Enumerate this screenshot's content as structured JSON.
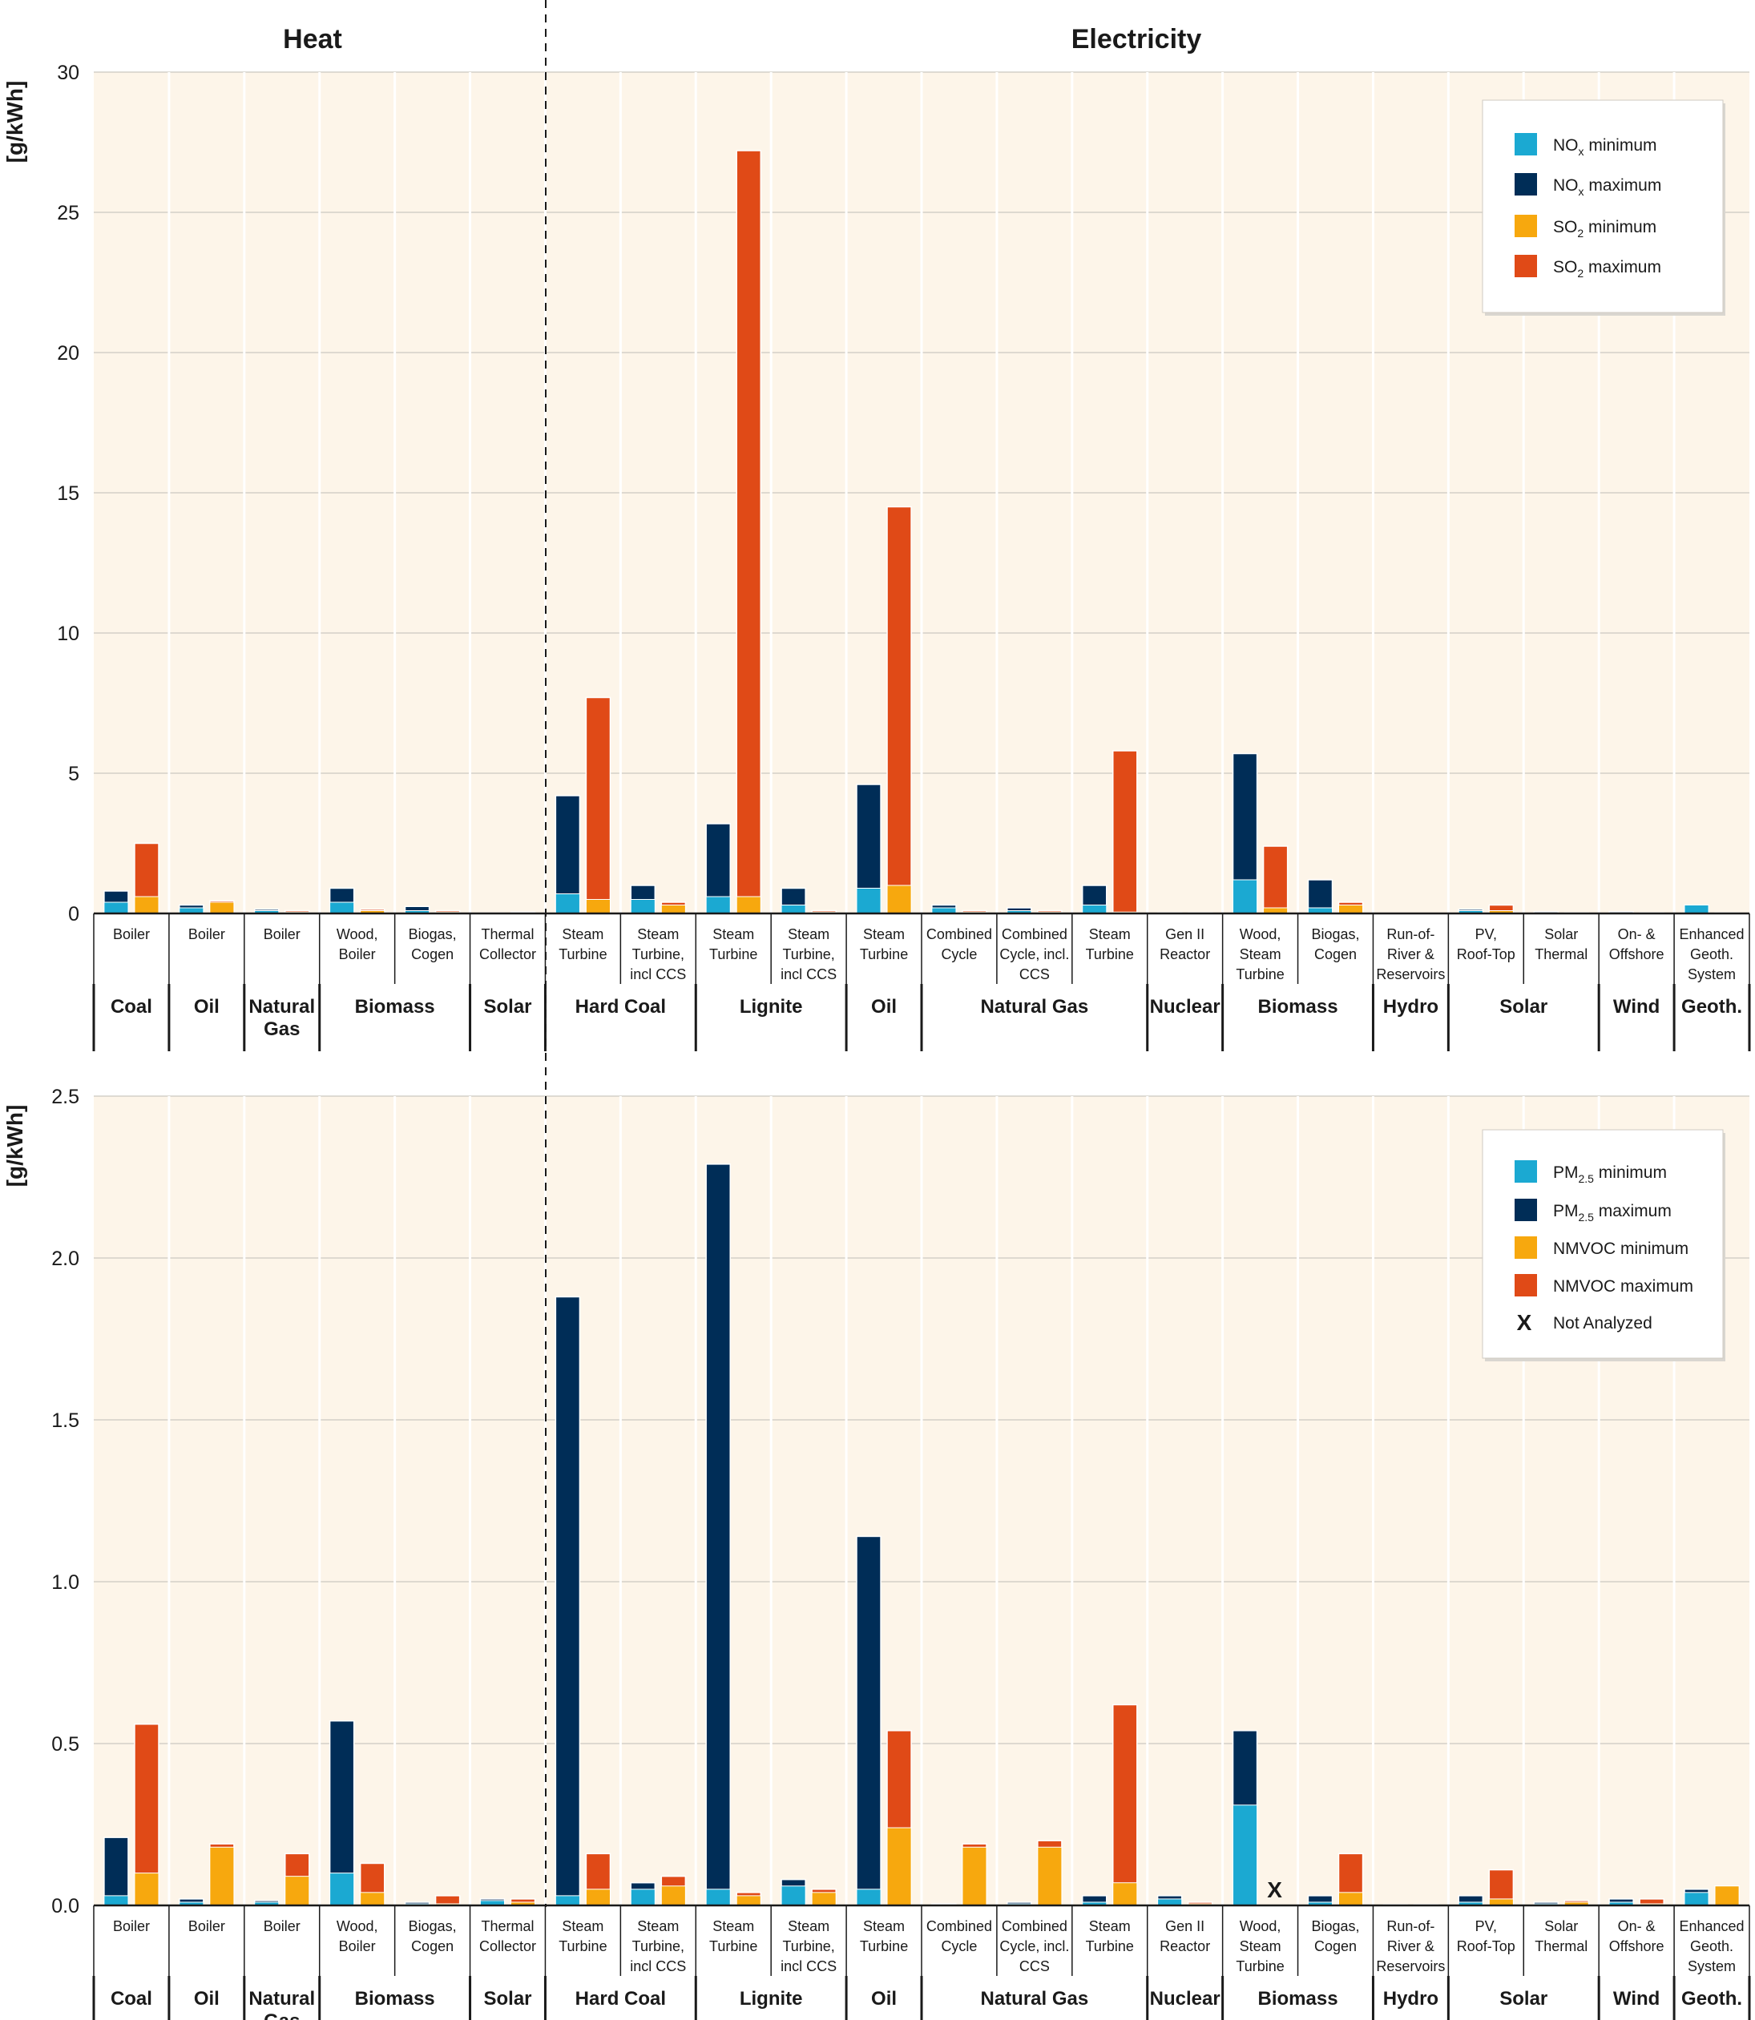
{
  "headers": {
    "heat": "Heat",
    "electricity": "Electricity"
  },
  "categories": [
    {
      "sub": [
        "Boiler"
      ],
      "group": "Coal"
    },
    {
      "sub": [
        "Boiler"
      ],
      "group": "Oil"
    },
    {
      "sub": [
        "Boiler"
      ],
      "group": "Natural Gas"
    },
    {
      "sub": [
        "Wood,",
        "Boiler"
      ],
      "group": "Biomass"
    },
    {
      "sub": [
        "Biogas,",
        "Cogen"
      ],
      "group": "Biomass"
    },
    {
      "sub": [
        "Thermal",
        "Collector"
      ],
      "group": "Solar"
    },
    {
      "sub": [
        "Steam",
        "Turbine"
      ],
      "group": "Hard Coal"
    },
    {
      "sub": [
        "Steam",
        "Turbine,",
        "incl CCS"
      ],
      "group": "Hard Coal"
    },
    {
      "sub": [
        "Steam",
        "Turbine"
      ],
      "group": "Lignite"
    },
    {
      "sub": [
        "Steam",
        "Turbine,",
        "incl CCS"
      ],
      "group": "Lignite"
    },
    {
      "sub": [
        "Steam",
        "Turbine"
      ],
      "group": "Oil"
    },
    {
      "sub": [
        "Combined",
        "Cycle"
      ],
      "group": "Natural Gas"
    },
    {
      "sub": [
        "Combined",
        "Cycle, incl.",
        "CCS"
      ],
      "group": "Natural Gas"
    },
    {
      "sub": [
        "Steam",
        "Turbine"
      ],
      "group": "Natural Gas"
    },
    {
      "sub": [
        "Gen II",
        "Reactor"
      ],
      "group": "Nuclear"
    },
    {
      "sub": [
        "Wood,",
        "Steam",
        "Turbine"
      ],
      "group": "Biomass"
    },
    {
      "sub": [
        "Biogas,",
        "Cogen"
      ],
      "group": "Biomass"
    },
    {
      "sub": [
        "Run-of-",
        "River &",
        "Reservoirs"
      ],
      "group": "Hydro"
    },
    {
      "sub": [
        "PV,",
        "Roof-Top"
      ],
      "group": "Solar"
    },
    {
      "sub": [
        "Solar",
        "Thermal"
      ],
      "group": "Solar"
    },
    {
      "sub": [
        "On- &",
        "Offshore"
      ],
      "group": "Wind"
    },
    {
      "sub": [
        "Enhanced",
        "Geoth.",
        "System"
      ],
      "group": "Geoth."
    }
  ],
  "groups": [
    {
      "label": [
        "Coal"
      ],
      "start": 0,
      "end": 0
    },
    {
      "label": [
        "Oil"
      ],
      "start": 1,
      "end": 1
    },
    {
      "label": [
        "Natural",
        "Gas"
      ],
      "start": 2,
      "end": 2
    },
    {
      "label": [
        "Biomass"
      ],
      "start": 3,
      "end": 4
    },
    {
      "label": [
        "Solar"
      ],
      "start": 5,
      "end": 5
    },
    {
      "label": [
        "Hard Coal"
      ],
      "start": 6,
      "end": 7
    },
    {
      "label": [
        "Lignite"
      ],
      "start": 8,
      "end": 9
    },
    {
      "label": [
        "Oil"
      ],
      "start": 10,
      "end": 10
    },
    {
      "label": [
        "Natural Gas"
      ],
      "start": 11,
      "end": 13
    },
    {
      "label": [
        "Nuclear"
      ],
      "start": 14,
      "end": 14
    },
    {
      "label": [
        "Biomass"
      ],
      "start": 15,
      "end": 16
    },
    {
      "label": [
        "Hydro"
      ],
      "start": 17,
      "end": 17
    },
    {
      "label": [
        "Solar"
      ],
      "start": 18,
      "end": 19
    },
    {
      "label": [
        "Wind"
      ],
      "start": 20,
      "end": 20
    },
    {
      "label": [
        "Geoth."
      ],
      "start": 21,
      "end": 21
    }
  ],
  "colors": {
    "min1": "#1ba9d2",
    "max1": "#002d57",
    "min2": "#f7a80e",
    "max2": "#e04a17",
    "plot_bg": "#fdf5e9",
    "grid": "#d4d0c8"
  },
  "chart_data": [
    {
      "type": "bar",
      "ylabel": "[g/kWh]",
      "ylim": [
        0,
        30
      ],
      "yticks": [
        0,
        5,
        10,
        15,
        20,
        25,
        30
      ],
      "ytick_labels": [
        "0",
        "5",
        "10",
        "15",
        "20",
        "25",
        "30"
      ],
      "legend": {
        "placement": "top-right",
        "entries": [
          {
            "base": "NO",
            "sub": "x",
            "rest": " minimum",
            "color": "#1ba9d2"
          },
          {
            "base": "NO",
            "sub": "x",
            "rest": " maximum",
            "color": "#002d57"
          },
          {
            "base": "SO",
            "sub": "2",
            "rest": " minimum",
            "color": "#f7a80e"
          },
          {
            "base": "SO",
            "sub": "2",
            "rest": " maximum",
            "color": "#e04a17"
          }
        ]
      },
      "series": [
        {
          "name": "NOx minimum",
          "values": [
            0.4,
            0.2,
            0.1,
            0.4,
            0.1,
            0.0,
            0.7,
            0.5,
            0.6,
            0.3,
            0.9,
            0.2,
            0.1,
            0.3,
            0.0,
            1.2,
            0.2,
            0.0,
            0.1,
            0.02,
            0.02,
            0.3
          ]
        },
        {
          "name": "NOx maximum",
          "values": [
            0.8,
            0.3,
            0.15,
            0.9,
            0.25,
            0.02,
            4.2,
            1.0,
            3.2,
            0.9,
            4.6,
            0.3,
            0.2,
            1.0,
            0.03,
            5.7,
            1.2,
            0.01,
            0.15,
            0.06,
            0.06,
            0.3
          ]
        },
        {
          "name": "SO2 minimum",
          "values": [
            0.6,
            0.4,
            0.05,
            0.1,
            0.05,
            0.02,
            0.5,
            0.3,
            0.6,
            0.05,
            1.0,
            0.05,
            0.05,
            0.05,
            0.02,
            0.2,
            0.3,
            0.0,
            0.1,
            0.02,
            0.02,
            0.02
          ]
        },
        {
          "name": "SO2 maximum",
          "values": [
            2.5,
            0.45,
            0.1,
            0.15,
            0.1,
            0.05,
            7.7,
            0.4,
            27.2,
            0.1,
            14.5,
            0.1,
            0.1,
            5.8,
            0.03,
            2.4,
            0.4,
            0.0,
            0.3,
            0.03,
            0.03,
            0.03
          ]
        }
      ]
    },
    {
      "type": "bar",
      "ylabel": "[g/kWh]",
      "ylim": [
        0,
        2.5
      ],
      "yticks": [
        0,
        0.5,
        1.0,
        1.5,
        2.0,
        2.5
      ],
      "ytick_labels": [
        "0.0",
        "0.5",
        "1.0",
        "1.5",
        "2.0",
        "2.5"
      ],
      "legend": {
        "placement": "top-right",
        "entries": [
          {
            "base": "PM",
            "sub": "2.5",
            "rest": " minimum",
            "color": "#1ba9d2"
          },
          {
            "base": "PM",
            "sub": "2.5",
            "rest": " maximum",
            "color": "#002d57"
          },
          {
            "base": "NMVOC minimum",
            "sub": "",
            "rest": "",
            "color": "#f7a80e"
          },
          {
            "base": "NMVOC maximum",
            "sub": "",
            "rest": "",
            "color": "#e04a17"
          },
          {
            "base": "Not Analyzed",
            "sub": "",
            "rest": "",
            "color": "",
            "symbol": "X"
          }
        ]
      },
      "not_analyzed_index": 15,
      "series": [
        {
          "name": "PM2.5 minimum",
          "values": [
            0.03,
            0.01,
            0.01,
            0.1,
            0.005,
            0.015,
            0.03,
            0.05,
            0.05,
            0.06,
            0.05,
            0.003,
            0.005,
            0.01,
            0.02,
            0.31,
            0.01,
            0.002,
            0.01,
            0.005,
            0.01,
            0.04
          ]
        },
        {
          "name": "PM2.5 maximum",
          "values": [
            0.21,
            0.02,
            0.015,
            0.57,
            0.01,
            0.02,
            1.88,
            0.07,
            2.29,
            0.08,
            1.14,
            0.005,
            0.01,
            0.03,
            0.03,
            0.54,
            0.03,
            0.003,
            0.03,
            0.01,
            0.02,
            0.05
          ]
        },
        {
          "name": "NMVOC minimum",
          "values": [
            0.1,
            0.18,
            0.09,
            0.04,
            0.005,
            0.01,
            0.05,
            0.06,
            0.03,
            0.04,
            0.24,
            0.18,
            0.18,
            0.07,
            0.005,
            0.0,
            0.04,
            0.002,
            0.02,
            0.01,
            0.005,
            0.06
          ]
        },
        {
          "name": "NMVOC maximum",
          "values": [
            0.56,
            0.19,
            0.16,
            0.13,
            0.03,
            0.02,
            0.16,
            0.09,
            0.04,
            0.05,
            0.54,
            0.19,
            0.2,
            0.62,
            0.01,
            0.0,
            0.16,
            0.003,
            0.11,
            0.015,
            0.02,
            0.06
          ]
        }
      ]
    }
  ]
}
